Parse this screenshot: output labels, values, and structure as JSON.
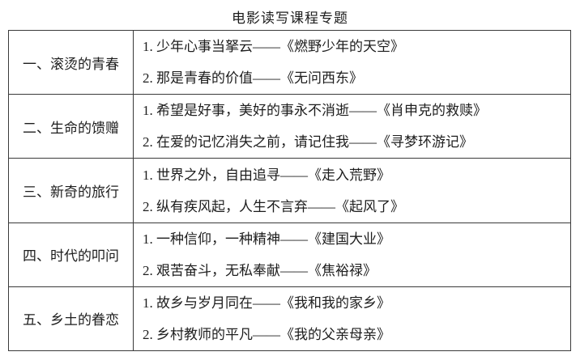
{
  "title": "电影读写课程专题",
  "table": {
    "rows": [
      {
        "category": "一、滚烫的青春",
        "items": [
          "1. 少年心事当拏云——《燃野少年的天空》",
          "2. 那是青春的价值——《无问西东》"
        ]
      },
      {
        "category": "二、生命的馈赠",
        "items": [
          "1. 希望是好事，美好的事永不消逝——《肖申克的救赎》",
          "2. 在爱的记忆消失之前，请记住我——《寻梦环游记》"
        ]
      },
      {
        "category": "三、新奇的旅行",
        "items": [
          "1. 世界之外，自由追寻——《走入荒野》",
          "2. 纵有疾风起，人生不言弃——《起风了》"
        ]
      },
      {
        "category": "四、时代的叩问",
        "items": [
          "1. 一种信仰，一种精神——《建国大业》",
          "2. 艰苦奋斗，无私奉献——《焦裕禄》"
        ]
      },
      {
        "category": "五、乡土的眷恋",
        "items": [
          "1. 故乡与岁月同在——《我和我的家乡》",
          "2. 乡村教师的平凡——《我的父亲母亲》"
        ]
      }
    ]
  }
}
